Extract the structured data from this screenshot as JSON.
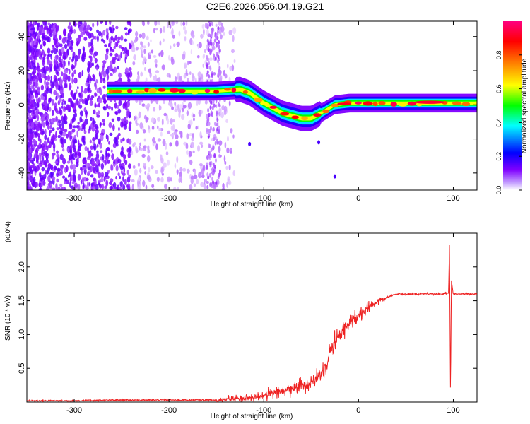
{
  "title": "C2E6.2026.056.04.19.G21",
  "chart_data": [
    {
      "type": "heatmap",
      "xlabel": "Height of straight line (km)",
      "ylabel": "Frequency (Hz)",
      "xlim": [
        -350,
        125
      ],
      "ylim": [
        -50,
        49
      ],
      "x_ticks": [
        -300,
        -200,
        -100,
        0,
        100
      ],
      "x_tick_labels": [
        "-300",
        "-200",
        "-100",
        "0",
        "100"
      ],
      "y_ticks": [
        40,
        20,
        0,
        -20,
        -40
      ],
      "y_tick_labels": [
        "40",
        "20",
        "0",
        "-20",
        "-40"
      ],
      "colorbar": {
        "label": "Normalized spectral amplitude",
        "range": [
          0,
          1
        ],
        "ticks": [
          0.0,
          0.2,
          0.4,
          0.6,
          0.8
        ],
        "tick_labels": [
          "0.0",
          "0.2",
          "0.4",
          "0.6",
          "0.8"
        ],
        "colors": [
          "#ffffff",
          "#8000ff",
          "#0000ff",
          "#00ffff",
          "#00ff00",
          "#ffff00",
          "#ff8000",
          "#ff0000",
          "#ff0080"
        ]
      },
      "ridge": {
        "x": [
          -265,
          -200,
          -150,
          -125,
          -115,
          -100,
          -80,
          -60,
          -50,
          -40,
          -25,
          -10,
          0,
          25,
          50,
          75,
          100,
          125
        ],
        "y": [
          8,
          8,
          8,
          9,
          7,
          1,
          -5,
          -8,
          -8,
          -5,
          0,
          1,
          1,
          1,
          1,
          1,
          1,
          1
        ]
      }
    },
    {
      "type": "line",
      "xlabel": "Height of straight line (km)",
      "ylabel": "SNR (10 * v/v)",
      "scale_note": "(x10^4)",
      "xlim": [
        -350,
        125
      ],
      "ylim": [
        0,
        2.5
      ],
      "x_ticks": [
        -300,
        -200,
        -100,
        0,
        100
      ],
      "x_tick_labels": [
        "-300",
        "-200",
        "-100",
        "0",
        "100"
      ],
      "y_ticks": [
        0.5,
        1.0,
        1.5,
        2.0
      ],
      "y_tick_labels": [
        "0.5",
        "1.0",
        "1.5",
        "2.0"
      ],
      "color": "#ee2222",
      "series": [
        {
          "name": "SNR",
          "x": [
            -350,
            -300,
            -250,
            -200,
            -150,
            -130,
            -110,
            -100,
            -90,
            -80,
            -70,
            -60,
            -50,
            -40,
            -35,
            -30,
            -25,
            -20,
            -10,
            0,
            10,
            20,
            30,
            40,
            50,
            60,
            80,
            90,
            95,
            96,
            97,
            98,
            100,
            110,
            125
          ],
          "y": [
            0.02,
            0.02,
            0.03,
            0.03,
            0.03,
            0.05,
            0.07,
            0.1,
            0.13,
            0.16,
            0.2,
            0.25,
            0.3,
            0.4,
            0.55,
            0.75,
            0.9,
            1.0,
            1.15,
            1.3,
            1.4,
            1.5,
            1.55,
            1.6,
            1.6,
            1.6,
            1.6,
            1.6,
            1.62,
            2.4,
            0.1,
            1.8,
            1.6,
            1.6,
            1.6
          ]
        }
      ]
    }
  ]
}
